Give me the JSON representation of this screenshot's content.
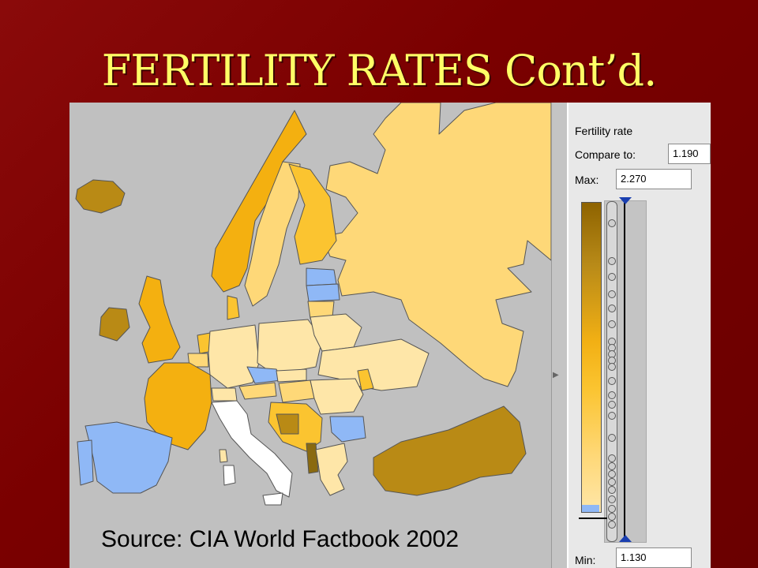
{
  "slide": {
    "title": "FERTILITY RATES Cont’d."
  },
  "map": {
    "source": "Source: CIA World Factbook 2002",
    "colors": {
      "sea": "#c0c0c0",
      "lightest": "#fee6a8",
      "light": "#fed878",
      "medium": "#fbc430",
      "orange": "#f4b010",
      "dark": "#b98a15",
      "darkest": "#8a6a10",
      "compare_below": "#8fb8f6",
      "no_data": "#ffffff"
    }
  },
  "legend": {
    "title": "Fertility rate",
    "compare_label": "Compare to:",
    "compare_value": "1.190",
    "max_label": "Max:",
    "max_value": "2.270",
    "min_label": "Min:",
    "min_value": "1.130"
  }
}
